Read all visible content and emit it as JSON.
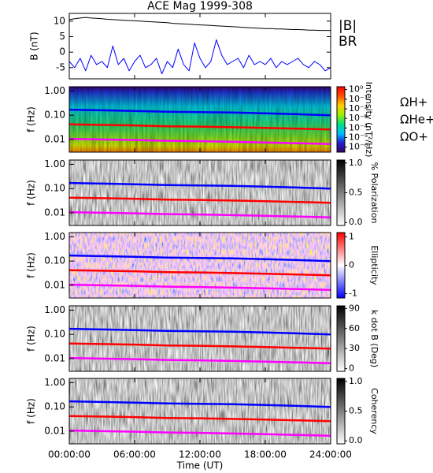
{
  "chart_data": [
    {
      "type": "line",
      "title": "ACE Mag 1999-308",
      "ylabel": "B (nT)",
      "x": [
        0,
        0.5,
        1,
        1.5,
        2,
        2.5,
        3,
        3.5,
        4,
        4.5,
        5,
        5.5,
        6,
        6.5,
        7,
        7.5,
        8,
        8.5,
        9,
        9.5,
        10,
        10.5,
        11,
        11.5,
        12,
        12.5,
        13,
        13.5,
        14,
        14.5,
        15,
        15.5,
        16,
        16.5,
        17,
        17.5,
        18,
        18.5,
        19,
        19.5,
        20,
        20.5,
        21,
        21.5,
        22,
        22.5,
        23,
        23.5,
        24
      ],
      "xlim": [
        0,
        24
      ],
      "ylim": [
        -8.6,
        12.5
      ],
      "yticks": [
        10,
        5,
        0,
        -5
      ],
      "series": [
        {
          "name": "|B|",
          "color": "#000000",
          "values": [
            10.5,
            10.8,
            11,
            11.2,
            11,
            10.9,
            10.8,
            10.6,
            10.5,
            10.4,
            10.3,
            10.2,
            10.1,
            10,
            9.9,
            9.8,
            9.7,
            9.6,
            9.5,
            9.3,
            9.2,
            9.1,
            9,
            8.9,
            8.8,
            8.7,
            8.6,
            8.5,
            8.4,
            8.3,
            8.2,
            8.1,
            8,
            7.9,
            7.8,
            7.7,
            7.6,
            7.6,
            7.5,
            7.5,
            7.4,
            7.3,
            7.3,
            7.2,
            7.1,
            7.1,
            7,
            7,
            7
          ]
        },
        {
          "name": "BR",
          "color": "#0000ff",
          "values": [
            -3,
            -5,
            -2,
            -6,
            -1,
            -4,
            -3,
            -5,
            2,
            -4,
            -2,
            -6,
            -3,
            -1,
            -5,
            -4,
            -2,
            -7,
            -3,
            -5,
            1,
            -4,
            -6,
            3,
            -2,
            -5,
            -3,
            4,
            -1,
            -4,
            -3,
            -2,
            -5,
            -1,
            -4,
            -3,
            -4,
            -2,
            -5,
            -3,
            -4,
            -3,
            -2,
            -4,
            -5,
            -3,
            -4,
            -6,
            -5
          ]
        }
      ]
    },
    {
      "type": "spectrogram",
      "ylabel": "f (Hz)",
      "ylim": [
        0.003,
        1.5
      ],
      "xlim": [
        0,
        24
      ],
      "yticks": [
        {
          "value": 1,
          "label": "1.00"
        },
        {
          "value": 0.1,
          "label": "0.10"
        },
        {
          "value": 0.01,
          "label": "0.01"
        }
      ],
      "x": [
        0,
        3,
        6,
        9,
        12,
        15,
        18,
        21,
        24
      ],
      "series": [
        {
          "name": "ΩH+",
          "color": "#0000ff",
          "values": [
            0.17,
            0.16,
            0.15,
            0.14,
            0.135,
            0.13,
            0.12,
            0.11,
            0.1
          ]
        },
        {
          "name": "ΩHe+",
          "color": "#ff0000",
          "values": [
            0.042,
            0.04,
            0.038,
            0.035,
            0.034,
            0.032,
            0.03,
            0.028,
            0.026
          ]
        },
        {
          "name": "ΩO+",
          "color": "#ff00ff",
          "values": [
            0.0106,
            0.01,
            0.0095,
            0.0088,
            0.0085,
            0.008,
            0.0075,
            0.007,
            0.0065
          ]
        }
      ],
      "colorbar": {
        "label": "Intensity (nT²/Hz)",
        "log": true,
        "lim": [
          3e-07,
          2
        ],
        "colors": [
          "#3a006a",
          "#2020d0",
          "#00c0ff",
          "#00e080",
          "#a0f000",
          "#ffd000",
          "#ff5000",
          "#ff0000"
        ],
        "ticks": [
          {
            "value": 1,
            "label": "10⁰"
          },
          {
            "value": 0.1,
            "label": "10⁻¹"
          },
          {
            "value": 0.01,
            "label": "10⁻²"
          },
          {
            "value": 0.001,
            "label": "10⁻³"
          },
          {
            "value": 0.0001,
            "label": "10⁻⁴"
          },
          {
            "value": 1e-05,
            "label": "10⁻⁵"
          },
          {
            "value": 1e-06,
            "label": "10⁻⁶"
          }
        ]
      }
    },
    {
      "type": "spectrogram",
      "ylabel": "f (Hz)",
      "ylim": [
        0.003,
        1.5
      ],
      "xlim": [
        0,
        24
      ],
      "yticks": [
        {
          "value": 1,
          "label": "1.00"
        },
        {
          "value": 0.1,
          "label": "0.10"
        },
        {
          "value": 0.01,
          "label": "0.01"
        }
      ],
      "x": [
        0,
        3,
        6,
        9,
        12,
        15,
        18,
        21,
        24
      ],
      "series": [
        {
          "color": "#0000ff",
          "values": [
            0.17,
            0.16,
            0.15,
            0.14,
            0.135,
            0.13,
            0.12,
            0.11,
            0.1
          ]
        },
        {
          "color": "#ff0000",
          "values": [
            0.042,
            0.04,
            0.038,
            0.035,
            0.034,
            0.032,
            0.03,
            0.028,
            0.026
          ]
        },
        {
          "color": "#ff00ff",
          "values": [
            0.0106,
            0.01,
            0.0095,
            0.0088,
            0.0085,
            0.008,
            0.0075,
            0.007,
            0.0065
          ]
        }
      ],
      "colorbar": {
        "label": "% Polarization",
        "log": false,
        "lim": [
          -0.05,
          1.05
        ],
        "colors": [
          "#ffffff",
          "#000000"
        ],
        "ticks": [
          {
            "value": 0,
            "label": "0.0"
          },
          0.5,
          {
            "value": 1,
            "label": "1.0"
          }
        ]
      }
    },
    {
      "type": "spectrogram",
      "ylabel": "f (Hz)",
      "ylim": [
        0.003,
        1.5
      ],
      "xlim": [
        0,
        24
      ],
      "yticks": [
        {
          "value": 1,
          "label": "1.00"
        },
        {
          "value": 0.1,
          "label": "0.10"
        },
        {
          "value": 0.01,
          "label": "0.01"
        }
      ],
      "x": [
        0,
        3,
        6,
        9,
        12,
        15,
        18,
        21,
        24
      ],
      "series": [
        {
          "color": "#0000ff",
          "values": [
            0.17,
            0.16,
            0.15,
            0.14,
            0.135,
            0.13,
            0.12,
            0.11,
            0.1
          ]
        },
        {
          "color": "#ff0000",
          "values": [
            0.042,
            0.04,
            0.038,
            0.035,
            0.034,
            0.032,
            0.03,
            0.028,
            0.026
          ]
        },
        {
          "color": "#ff00ff",
          "values": [
            0.0106,
            0.01,
            0.0095,
            0.0088,
            0.0085,
            0.008,
            0.0075,
            0.007,
            0.0065
          ]
        }
      ],
      "colorbar": {
        "label": "Ellipticity",
        "log": false,
        "lim": [
          -1.15,
          1.15
        ],
        "colors": [
          "#0000ff",
          "#ffffff",
          "#ff0000"
        ],
        "ticks": [
          -1,
          0,
          1
        ]
      }
    },
    {
      "type": "spectrogram",
      "ylabel": "f (Hz)",
      "ylim": [
        0.003,
        1.5
      ],
      "xlim": [
        0,
        24
      ],
      "yticks": [
        {
          "value": 1,
          "label": "1.00"
        },
        {
          "value": 0.1,
          "label": "0.10"
        },
        {
          "value": 0.01,
          "label": "0.01"
        }
      ],
      "x": [
        0,
        3,
        6,
        9,
        12,
        15,
        18,
        21,
        24
      ],
      "series": [
        {
          "color": "#0000ff",
          "values": [
            0.17,
            0.16,
            0.15,
            0.14,
            0.135,
            0.13,
            0.12,
            0.11,
            0.1
          ]
        },
        {
          "color": "#ff0000",
          "values": [
            0.042,
            0.04,
            0.038,
            0.035,
            0.034,
            0.032,
            0.03,
            0.028,
            0.026
          ]
        },
        {
          "color": "#ff00ff",
          "values": [
            0.0106,
            0.01,
            0.0095,
            0.0088,
            0.0085,
            0.008,
            0.0075,
            0.007,
            0.0065
          ]
        }
      ],
      "colorbar": {
        "label": "k dot B (Deg)",
        "log": false,
        "lim": [
          -4,
          94
        ],
        "colors": [
          "#ffffff",
          "#000000"
        ],
        "ticks": [
          0,
          30,
          60,
          90
        ]
      }
    },
    {
      "type": "spectrogram",
      "ylabel": "f (Hz)",
      "ylim": [
        0.003,
        1.5
      ],
      "xlim": [
        0,
        24
      ],
      "yticks": [
        {
          "value": 1,
          "label": "1.00"
        },
        {
          "value": 0.1,
          "label": "0.10"
        },
        {
          "value": 0.01,
          "label": "0.01"
        }
      ],
      "x": [
        0,
        3,
        6,
        9,
        12,
        15,
        18,
        21,
        24
      ],
      "series": [
        {
          "color": "#0000ff",
          "values": [
            0.17,
            0.16,
            0.15,
            0.14,
            0.135,
            0.13,
            0.12,
            0.11,
            0.1
          ]
        },
        {
          "color": "#ff0000",
          "values": [
            0.042,
            0.04,
            0.038,
            0.035,
            0.034,
            0.032,
            0.03,
            0.028,
            0.026
          ]
        },
        {
          "color": "#ff00ff",
          "values": [
            0.0106,
            0.01,
            0.0095,
            0.0088,
            0.0085,
            0.008,
            0.0075,
            0.007,
            0.0065
          ]
        }
      ],
      "colorbar": {
        "label": "Coherency",
        "log": false,
        "lim": [
          -0.05,
          1.05
        ],
        "colors": [
          "#ffffff",
          "#000000"
        ],
        "ticks": [
          {
            "value": 0,
            "label": "0.0"
          },
          0.5,
          {
            "value": 1,
            "label": "1.0"
          }
        ]
      },
      "xlabel": "Time (UT)",
      "xticks": [
        {
          "value": 0,
          "label": "00:00:00"
        },
        {
          "value": 6,
          "label": "06:00:00"
        },
        {
          "value": 12,
          "label": "12:00:00"
        },
        {
          "value": 18,
          "label": "18:00:00"
        },
        {
          "value": 24,
          "label": "24:00:00"
        }
      ]
    }
  ]
}
